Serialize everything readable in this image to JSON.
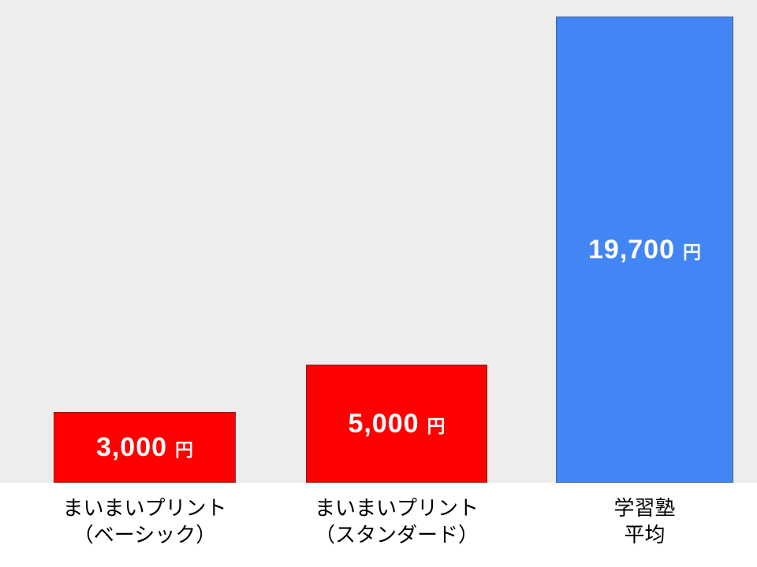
{
  "chart_data": {
    "type": "bar",
    "title": "",
    "unit": "円",
    "categories": [
      "まいまいプリント（ベーシック）",
      "まいまいプリント（スタンダード）",
      "学習塾 平均"
    ],
    "values": [
      3000,
      5000,
      19700
    ],
    "ylim": [
      0,
      20400
    ],
    "grid": false,
    "legend": "none",
    "plot_background": "#ededed",
    "page_background": "#ffffff",
    "value_text_color": "#ffffff",
    "bars": [
      {
        "value": 3000,
        "value_label": "3,000",
        "unit": "円",
        "color": "#ff0000",
        "border_color": "#8c2222",
        "label_line1": "まいまいプリント",
        "label_line2": "（ベーシック）"
      },
      {
        "value": 5000,
        "value_label": "5,000",
        "unit": "円",
        "color": "#ff0000",
        "border_color": "#8c2222",
        "label_line1": "まいまいプリント",
        "label_line2": "（スタンダード）"
      },
      {
        "value": 19700,
        "value_label": "19,700",
        "unit": "円",
        "color": "#4285f4",
        "border_color": "#44639e",
        "label_line1": "学習塾",
        "label_line2": "平均"
      }
    ]
  }
}
